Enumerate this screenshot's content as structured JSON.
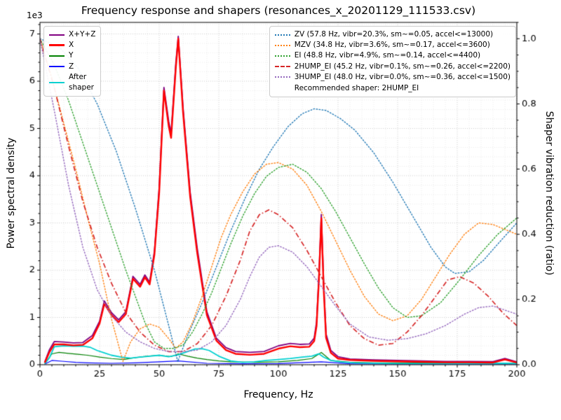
{
  "chart_data": {
    "type": "line",
    "title": "Frequency response and shapers (resonances_x_20201129_111533.csv)",
    "xlabel": "Frequency, Hz",
    "ylabel_left": "Power spectral density",
    "ylabel_right": "Shaper vibration reduction (ratio)",
    "xlim": [
      0,
      200
    ],
    "ylim_left": [
      0,
      7245
    ],
    "ylim_right": [
      0,
      1.05
    ],
    "x_ticks": {
      "values": [
        0,
        25,
        50,
        75,
        100,
        125,
        150,
        175,
        200
      ],
      "labels": [
        "0",
        "25",
        "50",
        "75",
        "100",
        "125",
        "150",
        "175",
        "200"
      ],
      "minor_step": 5
    },
    "y_left_ticks": {
      "values": [
        0,
        1000,
        2000,
        3000,
        4000,
        5000,
        6000,
        7000
      ],
      "labels": [
        "0",
        "1",
        "2",
        "3",
        "4",
        "5",
        "6",
        "7"
      ],
      "minor_step": 200,
      "offset_label": "1e3"
    },
    "y_right_ticks": {
      "values": [
        0,
        0.2,
        0.4,
        0.6,
        0.8,
        1.0
      ],
      "labels": [
        "0.0",
        "0.2",
        "0.4",
        "0.6",
        "0.8",
        "1.0"
      ],
      "minor_step": 0.05
    },
    "grid": {
      "major_color": "#c2c2c2",
      "minor_color": "#e4e4e4"
    },
    "legend_left_series": [
      0,
      1,
      2,
      3,
      4
    ],
    "legend_right_series": [
      5,
      6,
      7,
      8,
      9
    ],
    "legend_right_note": "Recommended shaper: 2HUMP_EI",
    "draw_order": [
      3,
      2,
      4,
      0,
      1,
      5,
      6,
      7,
      8,
      9
    ],
    "series": [
      {
        "id": "x-y-z",
        "label": "X+Y+Z",
        "axis": "left",
        "color": "#800080",
        "style": "solid",
        "width": 1.8,
        "x": [
          2,
          4,
          6,
          10,
          14,
          18,
          22,
          25,
          27,
          30,
          33,
          36,
          39,
          42,
          44,
          46,
          48,
          50,
          52,
          54,
          55,
          57,
          58,
          60,
          63,
          66,
          70,
          74,
          78,
          82,
          88,
          94,
          100,
          105,
          109,
          113,
          115,
          116,
          117,
          118,
          119,
          120,
          122,
          125,
          130,
          140,
          150,
          160,
          170,
          180,
          190,
          195,
          200
        ],
        "y": [
          60,
          320,
          490,
          480,
          460,
          470,
          620,
          920,
          1350,
          1100,
          950,
          1120,
          1870,
          1700,
          1900,
          1750,
          2400,
          3750,
          5870,
          5150,
          4900,
          6400,
          6950,
          5450,
          3650,
          2450,
          1120,
          560,
          360,
          280,
          260,
          280,
          400,
          450,
          430,
          440,
          560,
          900,
          1900,
          3180,
          1700,
          650,
          300,
          170,
          120,
          100,
          90,
          80,
          70,
          70,
          65,
          130,
          60
        ]
      },
      {
        "id": "x",
        "label": "X",
        "axis": "left",
        "color": "#ff0000",
        "style": "solid",
        "width": 2.4,
        "x": [
          2,
          4,
          6,
          10,
          14,
          18,
          22,
          25,
          27,
          30,
          33,
          36,
          39,
          42,
          44,
          46,
          48,
          50,
          52,
          54,
          55,
          57,
          58,
          60,
          63,
          66,
          70,
          74,
          78,
          82,
          88,
          94,
          100,
          105,
          109,
          113,
          115,
          116,
          117,
          118,
          119,
          120,
          122,
          125,
          130,
          140,
          150,
          160,
          170,
          180,
          190,
          195,
          200
        ],
        "y": [
          40,
          270,
          430,
          430,
          410,
          420,
          560,
          870,
          1290,
          1050,
          900,
          1070,
          1820,
          1650,
          1850,
          1700,
          2330,
          3650,
          5800,
          5050,
          4800,
          6300,
          6900,
          5350,
          3550,
          2350,
          1050,
          510,
          310,
          230,
          210,
          230,
          340,
          390,
          370,
          380,
          500,
          820,
          1800,
          3100,
          1600,
          570,
          250,
          130,
          100,
          80,
          70,
          60,
          50,
          50,
          45,
          110,
          45
        ]
      },
      {
        "id": "y",
        "label": "Y",
        "axis": "left",
        "color": "#008000",
        "style": "solid",
        "width": 1.2,
        "x": [
          2,
          5,
          8,
          12,
          16,
          20,
          25,
          30,
          35,
          40,
          45,
          50,
          55,
          58,
          62,
          66,
          70,
          75,
          80,
          90,
          100,
          108,
          114,
          118,
          122,
          130,
          140,
          160,
          180,
          200
        ],
        "y": [
          20,
          230,
          260,
          240,
          220,
          200,
          160,
          130,
          110,
          150,
          180,
          200,
          170,
          230,
          180,
          140,
          110,
          80,
          60,
          50,
          60,
          90,
          130,
          260,
          90,
          50,
          40,
          35,
          30,
          30
        ]
      },
      {
        "id": "z",
        "label": "Z",
        "axis": "left",
        "color": "#0000ff",
        "style": "solid",
        "width": 1.2,
        "x": [
          2,
          5,
          10,
          15,
          20,
          30,
          40,
          50,
          58,
          70,
          85,
          100,
          118,
          130,
          150,
          175,
          200
        ],
        "y": [
          10,
          90,
          70,
          50,
          40,
          30,
          40,
          60,
          80,
          30,
          20,
          25,
          60,
          20,
          15,
          15,
          15
        ]
      },
      {
        "id": "after-shaper",
        "label": "After\nshaper",
        "axis": "left",
        "color": "#00d0d0",
        "style": "solid",
        "width": 1.8,
        "x": [
          2,
          4,
          6,
          10,
          14,
          18,
          21,
          24,
          27,
          30,
          34,
          38,
          42,
          46,
          50,
          54,
          58,
          62,
          65,
          68,
          71,
          75,
          80,
          85,
          90,
          95,
          100,
          105,
          110,
          114,
          117,
          119,
          122,
          126,
          132,
          140,
          150,
          165,
          180,
          195,
          200
        ],
        "y": [
          20,
          150,
          380,
          400,
          390,
          395,
          370,
          300,
          250,
          200,
          160,
          140,
          160,
          180,
          200,
          170,
          210,
          280,
          330,
          340,
          300,
          180,
          80,
          50,
          60,
          90,
          110,
          130,
          160,
          180,
          230,
          160,
          90,
          60,
          40,
          30,
          25,
          25,
          25,
          30,
          25
        ]
      },
      {
        "id": "zv",
        "label": "ZV (57.8 Hz, vibr=20.3%, sm~=0.05, accel<=13000)",
        "axis": "right",
        "color": "#1f77b4",
        "style": "dotted",
        "width": 1.4,
        "x": [
          0,
          8,
          16,
          24,
          32,
          40,
          48,
          54,
          57.8,
          62,
          68,
          74,
          80,
          86,
          92,
          98,
          104,
          110,
          115,
          120,
          126,
          132,
          140,
          148,
          156,
          164,
          170,
          174,
          180,
          186,
          192,
          200
        ],
        "y": [
          1.0,
          0.975,
          0.91,
          0.8,
          0.655,
          0.48,
          0.29,
          0.12,
          0.01,
          0.09,
          0.19,
          0.3,
          0.41,
          0.51,
          0.6,
          0.67,
          0.73,
          0.77,
          0.785,
          0.78,
          0.755,
          0.72,
          0.65,
          0.56,
          0.46,
          0.36,
          0.3,
          0.28,
          0.285,
          0.32,
          0.37,
          0.435
        ]
      },
      {
        "id": "mzv",
        "label": "MZV (34.8 Hz, vibr=3.6%, sm~=0.17, accel<=3600)",
        "axis": "right",
        "color": "#ff7f0e",
        "style": "dotted",
        "width": 1.4,
        "x": [
          0,
          5,
          10,
          15,
          20,
          25,
          30,
          34.8,
          38,
          42,
          46,
          50,
          54,
          57,
          60,
          64,
          68,
          72,
          76,
          80,
          85,
          90,
          95,
          100,
          106,
          112,
          118,
          124,
          130,
          136,
          142,
          148,
          154,
          160,
          166,
          172,
          178,
          184,
          190,
          200
        ],
        "y": [
          1.0,
          0.88,
          0.74,
          0.6,
          0.45,
          0.31,
          0.14,
          0.01,
          0.07,
          0.11,
          0.125,
          0.115,
          0.08,
          0.05,
          0.07,
          0.13,
          0.21,
          0.3,
          0.39,
          0.46,
          0.53,
          0.585,
          0.615,
          0.62,
          0.6,
          0.55,
          0.47,
          0.38,
          0.29,
          0.21,
          0.155,
          0.135,
          0.15,
          0.2,
          0.27,
          0.34,
          0.4,
          0.435,
          0.43,
          0.4
        ]
      },
      {
        "id": "ei",
        "label": "EI (48.8 Hz, vibr=4.9%, sm~=0.14, accel<=4400)",
        "axis": "right",
        "color": "#2ca02c",
        "style": "dotted",
        "width": 1.4,
        "x": [
          0,
          6,
          12,
          18,
          24,
          30,
          36,
          40,
          44,
          48,
          52,
          56,
          60,
          64,
          68,
          72,
          76,
          80,
          85,
          90,
          95,
          100,
          106,
          112,
          118,
          124,
          130,
          136,
          142,
          148,
          154,
          160,
          168,
          176,
          184,
          192,
          200
        ],
        "y": [
          1.0,
          0.92,
          0.81,
          0.68,
          0.55,
          0.42,
          0.29,
          0.21,
          0.13,
          0.07,
          0.05,
          0.05,
          0.06,
          0.1,
          0.155,
          0.22,
          0.295,
          0.37,
          0.455,
          0.525,
          0.578,
          0.605,
          0.615,
          0.59,
          0.54,
          0.47,
          0.39,
          0.31,
          0.235,
          0.175,
          0.145,
          0.15,
          0.19,
          0.26,
          0.335,
          0.4,
          0.45
        ]
      },
      {
        "id": "2hump-ei",
        "label": "2HUMP_EI (45.2 Hz, vibr=0.1%, sm~=0.26, accel<=2200)",
        "axis": "right",
        "color": "#d62728",
        "style": "dashdot",
        "width": 1.7,
        "x": [
          0,
          6,
          12,
          18,
          24,
          30,
          36,
          42,
          48,
          54,
          60,
          66,
          72,
          78,
          84,
          88,
          92,
          96,
          100,
          106,
          112,
          118,
          124,
          130,
          136,
          142,
          148,
          154,
          160,
          166,
          171,
          176,
          182,
          188,
          194,
          200
        ],
        "y": [
          1.0,
          0.85,
          0.67,
          0.5,
          0.36,
          0.25,
          0.16,
          0.1,
          0.06,
          0.04,
          0.04,
          0.065,
          0.12,
          0.21,
          0.32,
          0.41,
          0.46,
          0.475,
          0.46,
          0.42,
          0.35,
          0.27,
          0.19,
          0.12,
          0.08,
          0.06,
          0.065,
          0.1,
          0.15,
          0.21,
          0.26,
          0.27,
          0.25,
          0.21,
          0.16,
          0.12
        ]
      },
      {
        "id": "3hump-ei",
        "label": "3HUMP_EI (48.0 Hz, vibr=0.0%, sm~=0.36, accel<=1500)",
        "axis": "right",
        "color": "#9467bd",
        "style": "dotted",
        "width": 1.4,
        "x": [
          0,
          6,
          12,
          18,
          24,
          30,
          36,
          42,
          48,
          54,
          60,
          66,
          72,
          78,
          84,
          88,
          92,
          96,
          100,
          106,
          112,
          118,
          124,
          130,
          138,
          146,
          154,
          162,
          170,
          178,
          184,
          190,
          196,
          200
        ],
        "y": [
          1.0,
          0.78,
          0.55,
          0.36,
          0.23,
          0.15,
          0.1,
          0.07,
          0.05,
          0.04,
          0.04,
          0.045,
          0.07,
          0.12,
          0.2,
          0.27,
          0.33,
          0.36,
          0.365,
          0.345,
          0.3,
          0.24,
          0.18,
          0.125,
          0.085,
          0.075,
          0.08,
          0.095,
          0.12,
          0.155,
          0.175,
          0.18,
          0.165,
          0.155
        ]
      }
    ]
  }
}
